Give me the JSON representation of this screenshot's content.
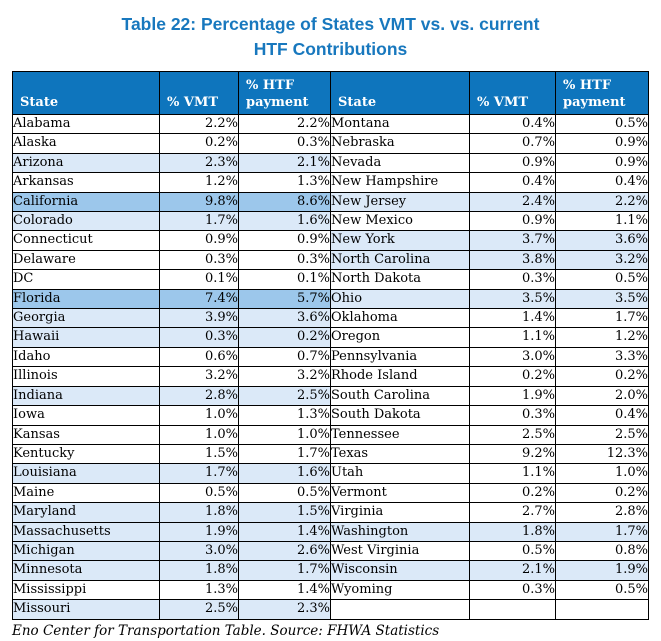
{
  "title": {
    "line1": "Table 22: Percentage of States VMT vs. vs. current",
    "line2": "HTF Contributions"
  },
  "footer": "Eno Center for Transportation Table. Source: FHWA Statistics",
  "colors": {
    "title_text": "#1878BE",
    "header_bg": "#0E75BD",
    "header_text": "#FFFFFF",
    "row_light_blue": "#DBE9F8",
    "row_medium_blue": "#9CC7EB",
    "state_green": "#1CA45C",
    "body_text": "#000000",
    "border": "#000000"
  },
  "chart_data": {
    "type": "table",
    "title": "Table 22: Percentage of States VMT vs. vs. current HTF Contributions",
    "columns": [
      "State",
      "% VMT",
      "% HTF payment",
      "State",
      "% VMT",
      "% HTF payment"
    ],
    "left_rows": [
      {
        "state": "Alabama",
        "vmt": "2.2%",
        "htf": "2.2%",
        "bg": "none",
        "state_color": "green"
      },
      {
        "state": "Alaska",
        "vmt": "0.2%",
        "htf": "0.3%",
        "bg": "none",
        "state_color": "black"
      },
      {
        "state": "Arizona",
        "vmt": "2.3%",
        "htf": "2.1%",
        "bg": "light",
        "state_color": "green"
      },
      {
        "state": "Arkansas",
        "vmt": "1.2%",
        "htf": "1.3%",
        "bg": "none",
        "state_color": "black"
      },
      {
        "state": "California",
        "vmt": "9.8%",
        "htf": "8.6%",
        "bg": "medium",
        "state_color": "black"
      },
      {
        "state": "Colorado",
        "vmt": "1.7%",
        "htf": "1.6%",
        "bg": "light",
        "state_color": "green"
      },
      {
        "state": "Connecticut",
        "vmt": "0.9%",
        "htf": "0.9%",
        "bg": "none",
        "state_color": "black"
      },
      {
        "state": "Delaware",
        "vmt": "0.3%",
        "htf": "0.3%",
        "bg": "none",
        "state_color": "black"
      },
      {
        "state": "DC",
        "vmt": "0.1%",
        "htf": "0.1%",
        "bg": "none",
        "state_color": "black"
      },
      {
        "state": "Florida",
        "vmt": "7.4%",
        "htf": "5.7%",
        "bg": "medium",
        "state_color": "green"
      },
      {
        "state": "Georgia",
        "vmt": "3.9%",
        "htf": "3.6%",
        "bg": "light",
        "state_color": "green"
      },
      {
        "state": "Hawaii",
        "vmt": "0.3%",
        "htf": "0.2%",
        "bg": "light",
        "state_color": "black"
      },
      {
        "state": "Idaho",
        "vmt": "0.6%",
        "htf": "0.7%",
        "bg": "none",
        "state_color": "black"
      },
      {
        "state": "Illinois",
        "vmt": "3.2%",
        "htf": "3.2%",
        "bg": "none",
        "state_color": "black"
      },
      {
        "state": "Indiana",
        "vmt": "2.8%",
        "htf": "2.5%",
        "bg": "light",
        "state_color": "green"
      },
      {
        "state": "Iowa",
        "vmt": "1.0%",
        "htf": "1.3%",
        "bg": "none",
        "state_color": "black"
      },
      {
        "state": "Kansas",
        "vmt": "1.0%",
        "htf": "1.0%",
        "bg": "none",
        "state_color": "black"
      },
      {
        "state": "Kentucky",
        "vmt": "1.5%",
        "htf": "1.7%",
        "bg": "none",
        "state_color": "black"
      },
      {
        "state": "Louisiana",
        "vmt": "1.7%",
        "htf": "1.6%",
        "bg": "light",
        "state_color": "black"
      },
      {
        "state": "Maine",
        "vmt": "0.5%",
        "htf": "0.5%",
        "bg": "none",
        "state_color": "black"
      },
      {
        "state": "Maryland",
        "vmt": "1.8%",
        "htf": "1.5%",
        "bg": "light",
        "state_color": "black"
      },
      {
        "state": "Massachusetts",
        "vmt": "1.9%",
        "htf": "1.4%",
        "bg": "light",
        "state_color": "green"
      },
      {
        "state": "Michigan",
        "vmt": "3.0%",
        "htf": "2.6%",
        "bg": "light",
        "state_color": "green"
      },
      {
        "state": "Minnesota",
        "vmt": "1.8%",
        "htf": "1.7%",
        "bg": "light",
        "state_color": "black"
      },
      {
        "state": "Mississippi",
        "vmt": "1.3%",
        "htf": "1.4%",
        "bg": "none",
        "state_color": "green"
      },
      {
        "state": "Missouri",
        "vmt": "2.5%",
        "htf": "2.3%",
        "bg": "light",
        "state_color": "black"
      }
    ],
    "right_rows": [
      {
        "state": "Montana",
        "vmt": "0.4%",
        "htf": "0.5%",
        "bg": "none",
        "state_color": "black"
      },
      {
        "state": "Nebraska",
        "vmt": "0.7%",
        "htf": "0.9%",
        "bg": "none",
        "state_color": "black"
      },
      {
        "state": "Nevada",
        "vmt": "0.9%",
        "htf": "0.9%",
        "bg": "none",
        "state_color": "black"
      },
      {
        "state": "New Hampshire",
        "vmt": "0.4%",
        "htf": "0.4%",
        "bg": "none",
        "state_color": "black"
      },
      {
        "state": "New Jersey",
        "vmt": "2.4%",
        "htf": "2.2%",
        "bg": "light",
        "state_color": "black"
      },
      {
        "state": "New Mexico",
        "vmt": "0.9%",
        "htf": "1.1%",
        "bg": "none",
        "state_color": "black"
      },
      {
        "state": "New York",
        "vmt": "3.7%",
        "htf": "3.6%",
        "bg": "light",
        "state_color": "black"
      },
      {
        "state": "North Carolina",
        "vmt": "3.8%",
        "htf": "3.2%",
        "bg": "light",
        "state_color": "green"
      },
      {
        "state": "North Dakota",
        "vmt": "0.3%",
        "htf": "0.5%",
        "bg": "none",
        "state_color": "black"
      },
      {
        "state": "Ohio",
        "vmt": "3.5%",
        "htf": "3.5%",
        "bg": "light",
        "state_color": "green"
      },
      {
        "state": "Oklahoma",
        "vmt": "1.4%",
        "htf": "1.7%",
        "bg": "none",
        "state_color": "black"
      },
      {
        "state": "Oregon",
        "vmt": "1.1%",
        "htf": "1.2%",
        "bg": "none",
        "state_color": "black"
      },
      {
        "state": "Pennsylvania",
        "vmt": "3.0%",
        "htf": "3.3%",
        "bg": "none",
        "state_color": "black"
      },
      {
        "state": "Rhode Island",
        "vmt": "0.2%",
        "htf": "0.2%",
        "bg": "none",
        "state_color": "black"
      },
      {
        "state": "South Carolina",
        "vmt": "1.9%",
        "htf": "2.0%",
        "bg": "none",
        "state_color": "green"
      },
      {
        "state": "South Dakota",
        "vmt": "0.3%",
        "htf": "0.4%",
        "bg": "none",
        "state_color": "black"
      },
      {
        "state": "Tennessee",
        "vmt": "2.5%",
        "htf": "2.5%",
        "bg": "none",
        "state_color": "green"
      },
      {
        "state": "Texas",
        "vmt": "9.2%",
        "htf": "12.3%",
        "bg": "none",
        "state_color": "green"
      },
      {
        "state": "Utah",
        "vmt": "1.1%",
        "htf": "1.0%",
        "bg": "none",
        "state_color": "green"
      },
      {
        "state": "Vermont",
        "vmt": "0.2%",
        "htf": "0.2%",
        "bg": "none",
        "state_color": "black"
      },
      {
        "state": "Virginia",
        "vmt": "2.7%",
        "htf": "2.8%",
        "bg": "none",
        "state_color": "green"
      },
      {
        "state": "Washington",
        "vmt": "1.8%",
        "htf": "1.7%",
        "bg": "light",
        "state_color": "black"
      },
      {
        "state": "West Virginia",
        "vmt": "0.5%",
        "htf": "0.8%",
        "bg": "none",
        "state_color": "black"
      },
      {
        "state": "Wisconsin",
        "vmt": "2.1%",
        "htf": "1.9%",
        "bg": "light",
        "state_color": "black"
      },
      {
        "state": "Wyoming",
        "vmt": "0.3%",
        "htf": "0.5%",
        "bg": "none",
        "state_color": "black"
      },
      {
        "state": "",
        "vmt": "",
        "htf": "",
        "bg": "none",
        "state_color": "black"
      }
    ]
  }
}
